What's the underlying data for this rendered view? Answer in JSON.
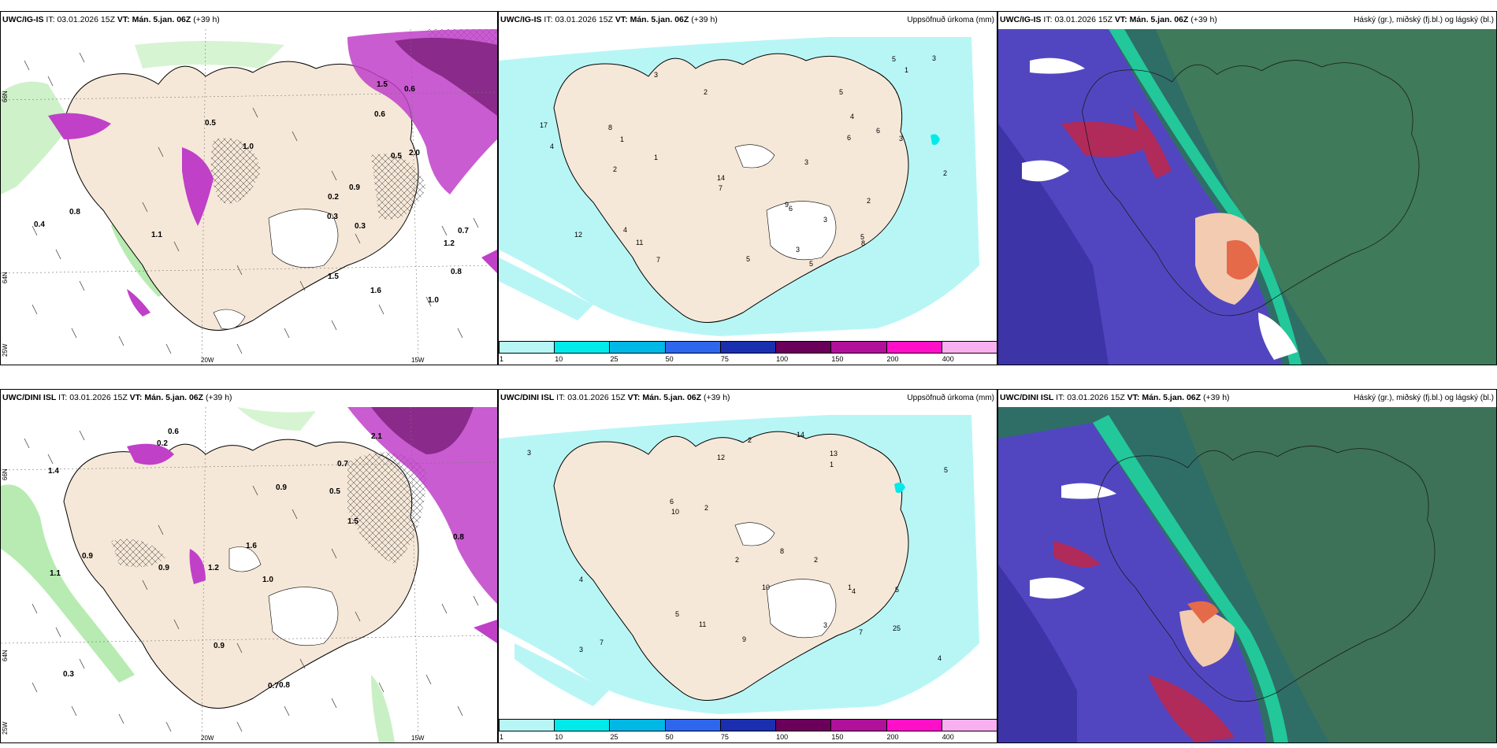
{
  "rows": [
    {
      "model": "UWC/IG-IS",
      "it_label": "IT:",
      "it_value": "03.01.2026 15Z",
      "vt_label": "VT:",
      "vt_value": "Mán. 5.jan. 06Z",
      "lead": "(+39 h)",
      "axis": {
        "lon1": "20W",
        "lon2": "15W",
        "lat1": "66N",
        "lat2": "64N",
        "lat3": "25W"
      },
      "precip_title": "Uppsöfnuð úrkoma (mm)",
      "cloud_title": "Háský (gr.), miðský (fj.bl.) og lágský (bl.)",
      "precip_numbers": [
        "5",
        "3",
        "4",
        "8",
        "6",
        "3",
        "2",
        "1",
        "7",
        "11",
        "12",
        "17",
        "14",
        "9",
        "6",
        "5",
        "4",
        "1",
        "2",
        "3",
        "5",
        "6",
        "7",
        "8",
        "3",
        "4",
        "2",
        "1",
        "5",
        "2",
        "3",
        "3",
        "5"
      ],
      "point_values": [
        "0.3",
        "0.7",
        "0.5",
        "1.2",
        "1.5",
        "0.6",
        "2.0",
        "1.0",
        "0.8",
        "1.6",
        "0.9",
        "0.2",
        "0.4",
        "0.3",
        "1.1",
        "1.0",
        "0.6",
        "0.8",
        "1.5",
        "0.5"
      ]
    },
    {
      "model": "UWC/DINI ISL",
      "it_label": "IT:",
      "it_value": "03.01.2026 15Z",
      "vt_label": "VT:",
      "vt_value": "Mán. 5.jan. 06Z",
      "lead": "(+39 h)",
      "axis": {
        "lon1": "20W",
        "lon2": "15W",
        "lat1": "66N",
        "lat2": "64N",
        "lat3": "25W"
      },
      "precip_title": "Uppsöfnuð úrkoma (mm)",
      "cloud_title": "Háský (gr.), miðský (fj.bl.) og lágský (bl.)",
      "precip_numbers": [
        "3",
        "5",
        "8",
        "10",
        "12",
        "14",
        "25",
        "13",
        "7",
        "5",
        "4",
        "10",
        "11",
        "2",
        "3",
        "6",
        "1",
        "4",
        "2",
        "5",
        "3",
        "7",
        "9",
        "2",
        "4",
        "1",
        "2"
      ],
      "point_values": [
        "0.6",
        "0.7",
        "0.8",
        "1.2",
        "1.0",
        "0.9",
        "1.4",
        "0.5",
        "1.1",
        "0.9",
        "1.6",
        "0.3",
        "0.2",
        "0.9",
        "0.7",
        "0.8",
        "0.9",
        "2.1",
        "1.5"
      ]
    }
  ],
  "colorbar": {
    "labels": [
      "1",
      "10",
      "25",
      "50",
      "75",
      "100",
      "150",
      "200",
      "400"
    ],
    "colors": [
      "#b8f6f6",
      "#00eaea",
      "#00b8e6",
      "#2f66ee",
      "#1a2fb0",
      "#6a005a",
      "#b0109a",
      "#ff10c8",
      "#f8b0f0"
    ]
  },
  "colors": {
    "land": "#f6e8d8",
    "sea": "#ffffff",
    "snow_light": "#b8f6f6",
    "cloud_high": "#5a4cc8",
    "cloud_sea": "#2a7f80"
  }
}
